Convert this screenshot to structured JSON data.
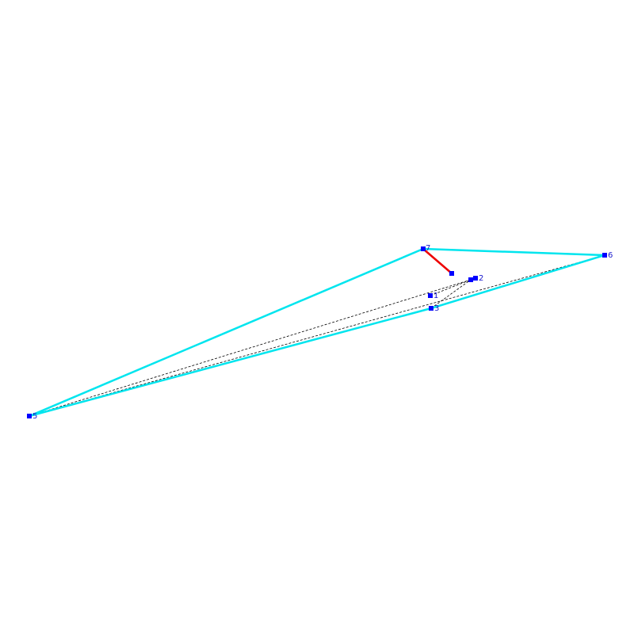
{
  "nodes": [
    {
      "label": "1"
    },
    {
      "label": "2"
    },
    {
      "label": "3"
    },
    {
      "label": "5"
    },
    {
      "label": "6"
    },
    {
      "label": "7"
    }
  ]
}
